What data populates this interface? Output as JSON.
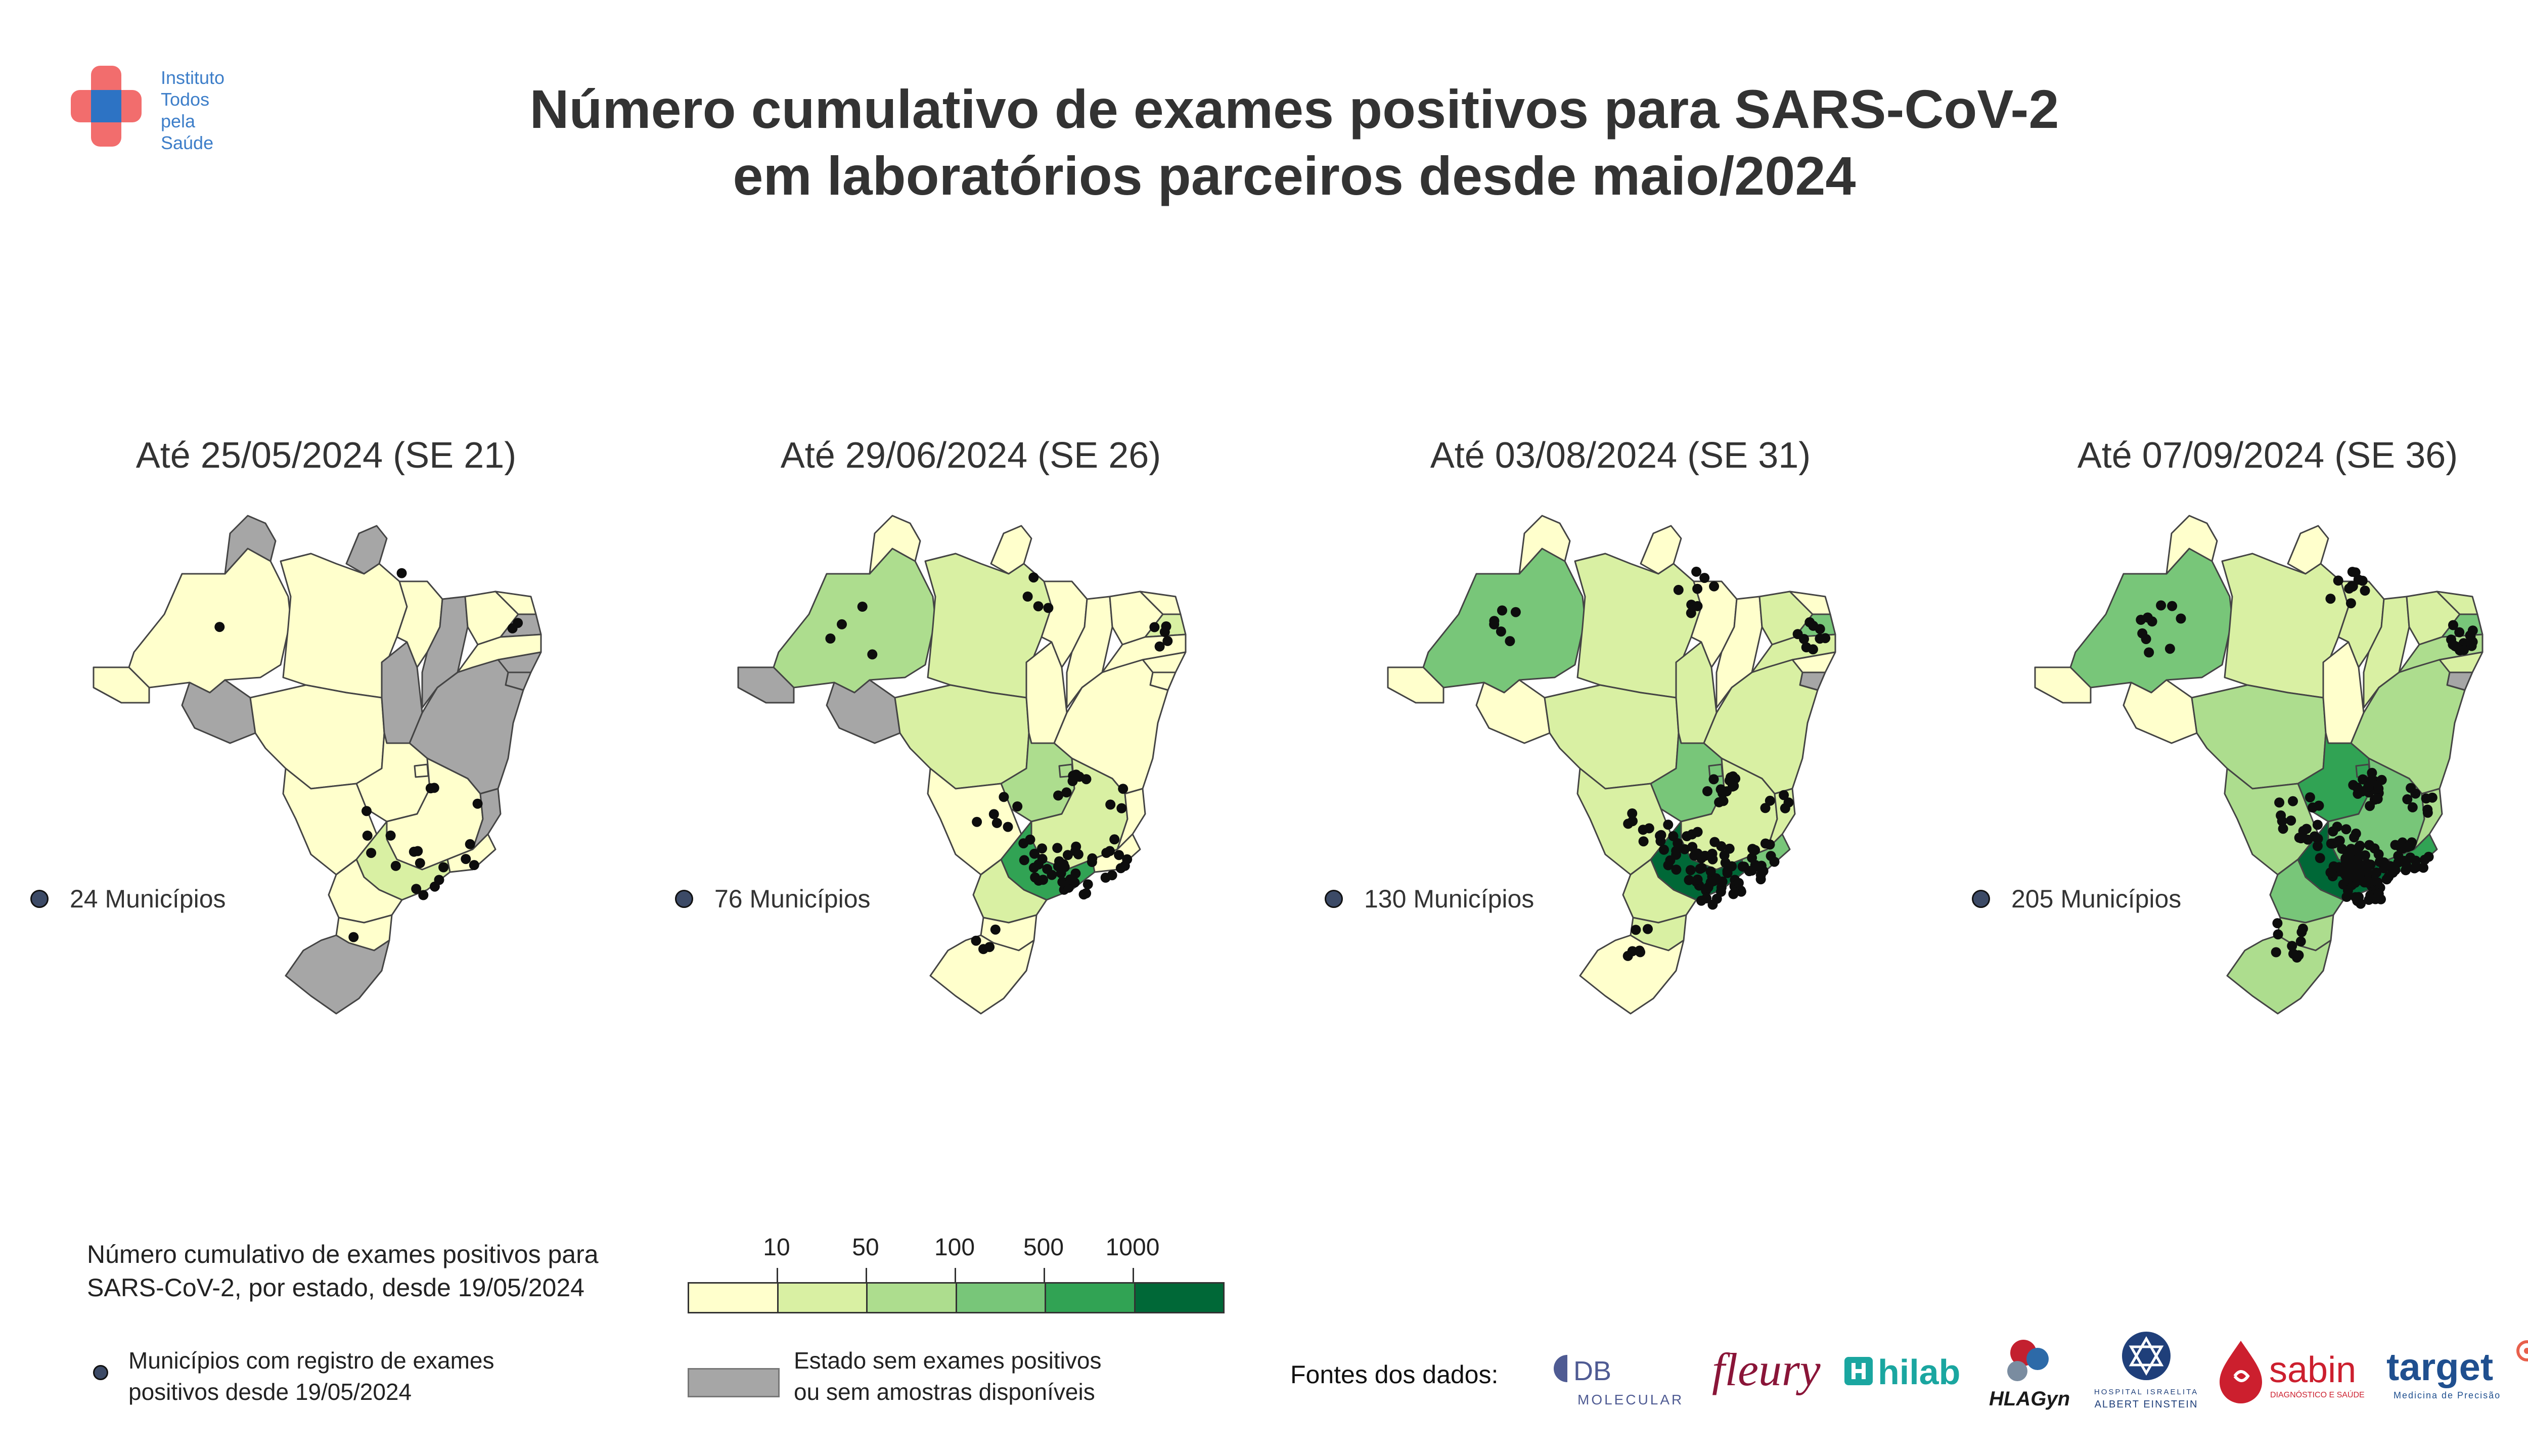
{
  "brand": {
    "lines": [
      "Instituto",
      "Todos",
      "pela",
      "Saúde"
    ],
    "colors": {
      "cross_red": "#f26d6d",
      "cross_blue": "#2d73c4",
      "text_blue": "#3d7ec9"
    }
  },
  "title": {
    "line1": "Número cumulativo de exames positivos para SARS-CoV-2",
    "line2": "em laboratórios parceiros desde maio/2024"
  },
  "panels": [
    {
      "title": "Até 25/05/2024 (SE 21)",
      "municipios": "24 Municípios",
      "states": {
        "AC": "b1",
        "AM": "b1",
        "RR": "grey",
        "PA": "b1",
        "AP": "grey",
        "TO": "grey",
        "MA": "b1",
        "PI": "grey",
        "CE": "b1",
        "RN": "b1",
        "PB": "grey",
        "PE": "b1",
        "AL": "grey",
        "SE": "grey",
        "BA": "grey",
        "RO": "grey",
        "MT": "b1",
        "MS": "b1",
        "GO": "b1",
        "DF": "b1",
        "MG": "b1",
        "ES": "grey",
        "RJ": "b1",
        "SP": "b2",
        "PR": "b1",
        "SC": "b1",
        "RS": "grey"
      },
      "points_count": 24
    },
    {
      "title": "Até 29/06/2024 (SE 26)",
      "municipios": "76 Municípios",
      "states": {
        "AC": "grey",
        "AM": "b3",
        "RR": "b1",
        "PA": "b2",
        "AP": "b1",
        "TO": "b1",
        "MA": "b1",
        "PI": "b1",
        "CE": "b1",
        "RN": "b1",
        "PB": "b2",
        "PE": "b1",
        "AL": "b1",
        "SE": "b1",
        "BA": "b1",
        "RO": "grey",
        "MT": "b2",
        "MS": "b1",
        "GO": "b3",
        "DF": "b3",
        "MG": "b2",
        "ES": "b1",
        "RJ": "b1",
        "SP": "b5",
        "PR": "b2",
        "SC": "b1",
        "RS": "b1"
      },
      "points_count": 76
    },
    {
      "title": "Até 03/08/2024 (SE 31)",
      "municipios": "130 Municípios",
      "states": {
        "AC": "b1",
        "AM": "b4",
        "RR": "b1",
        "PA": "b2",
        "AP": "b1",
        "TO": "b2",
        "MA": "b1",
        "PI": "b1",
        "CE": "b2",
        "RN": "b1",
        "PB": "b4",
        "PE": "b2",
        "AL": "b1",
        "SE": "grey",
        "BA": "b2",
        "RO": "b1",
        "MT": "b2",
        "MS": "b2",
        "GO": "b4",
        "DF": "b4",
        "MG": "b2",
        "ES": "b2",
        "RJ": "b4",
        "SP": "b6",
        "PR": "b2",
        "SC": "b2",
        "RS": "b1"
      },
      "points_count": 130
    },
    {
      "title": "Até 07/09/2024 (SE 36)",
      "municipios": "205 Municípios",
      "states": {
        "AC": "b1",
        "AM": "b4",
        "RR": "b1",
        "PA": "b2",
        "AP": "b1",
        "TO": "b1",
        "MA": "b2",
        "PI": "b2",
        "CE": "b2",
        "RN": "b2",
        "PB": "b4",
        "PE": "b3",
        "AL": "b2",
        "SE": "grey",
        "BA": "b3",
        "RO": "b1",
        "MT": "b3",
        "MS": "b3",
        "GO": "b5",
        "DF": "b5",
        "MG": "b4",
        "ES": "b3",
        "RJ": "b5",
        "SP": "b6",
        "PR": "b4",
        "SC": "b3",
        "RS": "b3"
      },
      "points_count": 205
    }
  ],
  "bin_colors": {
    "b1": "#ffffcc",
    "b2": "#d9f0a3",
    "b3": "#addd8e",
    "b4": "#78c679",
    "b5": "#31a354",
    "b6": "#006837",
    "grey": "#a6a6a6"
  },
  "legend": {
    "title_line1": "Número cumulativo de exames positivos para",
    "title_line2": "SARS-CoV-2, por estado, desde 19/05/2024",
    "ticks": [
      "10",
      "50",
      "100",
      "500",
      "1000"
    ],
    "dot_line1": "Municípios com registro de exames",
    "dot_line2": "positivos desde 19/05/2024",
    "grey_line1": "Estado sem exames positivos",
    "grey_line2": "ou sem amostras disponíveis"
  },
  "sources": {
    "label": "Fontes dos dados:",
    "logos": [
      {
        "name": "DB",
        "sub": "MOLECULAR",
        "color": "#4f5b93"
      },
      {
        "name": "fleury",
        "color": "#8a1538"
      },
      {
        "name": "hilab",
        "color": "#1aa6a0"
      },
      {
        "name": "HLAGyn",
        "color": "#1a1a1a"
      },
      {
        "name": "HOSPITAL ISRAELITA",
        "sub": "ALBERT EINSTEIN",
        "color": "#1f3f7a"
      },
      {
        "name": "sabin",
        "sub": "DIAGNÓSTICO E SAÚDE",
        "color": "#cc1f2e"
      },
      {
        "name": "target",
        "sub": "Medicina de Precisão",
        "color": "#1f4f8f"
      }
    ]
  }
}
